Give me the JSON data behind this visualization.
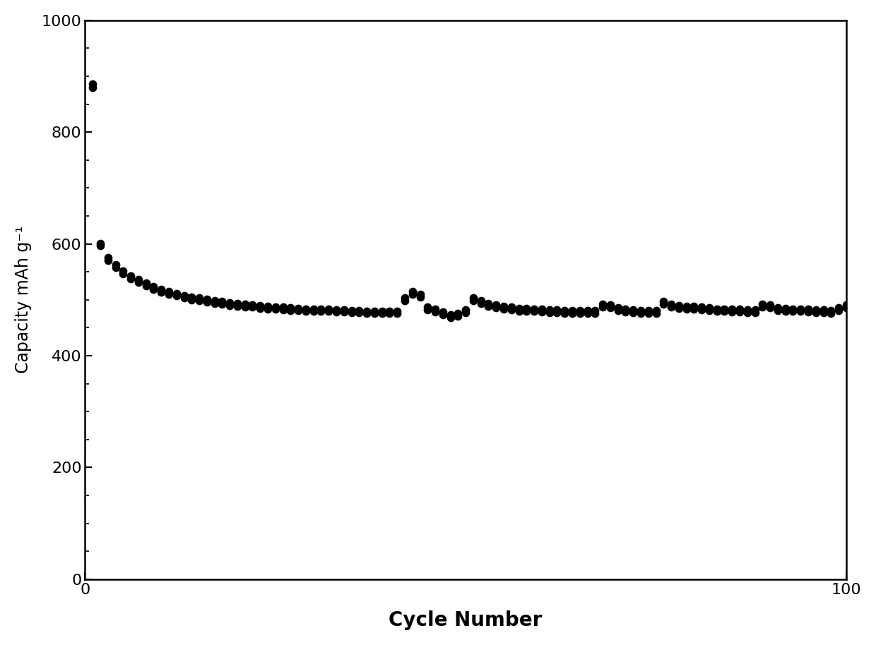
{
  "title": "",
  "xlabel": "Cycle Number",
  "ylabel": "Capacity mAh g⁻¹",
  "xlim": [
    0,
    100
  ],
  "ylim": [
    0,
    1000
  ],
  "yticks": [
    0,
    200,
    400,
    600,
    800,
    1000
  ],
  "xticks": [
    0,
    100
  ],
  "marker_color": "#000000",
  "marker_size": 55,
  "background_color": "#ffffff",
  "xlabel_fontsize": 20,
  "ylabel_fontsize": 17,
  "tick_fontsize": 16,
  "cycles": [
    1,
    2,
    3,
    4,
    5,
    6,
    7,
    8,
    9,
    10,
    11,
    12,
    13,
    14,
    15,
    16,
    17,
    18,
    19,
    20,
    21,
    22,
    23,
    24,
    25,
    26,
    27,
    28,
    29,
    30,
    31,
    32,
    33,
    34,
    35,
    36,
    37,
    38,
    39,
    40,
    41,
    42,
    43,
    44,
    45,
    46,
    47,
    48,
    49,
    50,
    51,
    52,
    53,
    54,
    55,
    56,
    57,
    58,
    59,
    60,
    61,
    62,
    63,
    64,
    65,
    66,
    67,
    68,
    69,
    70,
    71,
    72,
    73,
    74,
    75,
    76,
    77,
    78,
    79,
    80,
    81,
    82,
    83,
    84,
    85,
    86,
    87,
    88,
    89,
    90,
    91,
    92,
    93,
    94,
    95,
    96,
    97,
    98,
    99,
    100
  ],
  "charge": [
    886,
    601,
    575,
    563,
    551,
    543,
    537,
    530,
    524,
    519,
    515,
    511,
    508,
    505,
    503,
    501,
    499,
    497,
    495,
    494,
    492,
    491,
    490,
    488,
    487,
    487,
    486,
    485,
    484,
    484,
    483,
    483,
    482,
    482,
    481,
    481,
    480,
    480,
    480,
    480,
    480,
    504,
    515,
    510,
    487,
    483,
    478,
    473,
    476,
    482,
    503,
    498,
    493,
    491,
    488,
    487,
    485,
    485,
    484,
    483,
    482,
    482,
    481,
    481,
    481,
    481,
    481,
    492,
    491,
    486,
    483,
    482,
    481,
    481,
    481,
    497,
    492,
    490,
    489,
    488,
    487,
    486,
    484,
    484,
    483,
    483,
    482,
    482,
    492,
    491,
    486,
    485,
    484,
    484,
    483,
    482,
    482,
    481,
    486,
    491
  ],
  "discharge": [
    880,
    597,
    570,
    558,
    546,
    538,
    532,
    525,
    519,
    514,
    510,
    507,
    503,
    500,
    498,
    496,
    494,
    492,
    490,
    489,
    487,
    487,
    485,
    484,
    483,
    482,
    481,
    481,
    480,
    479,
    479,
    479,
    478,
    478,
    477,
    477,
    476,
    476,
    476,
    476,
    476,
    499,
    510,
    505,
    482,
    478,
    473,
    468,
    471,
    477,
    498,
    493,
    488,
    486,
    483,
    482,
    480,
    480,
    479,
    478,
    477,
    477,
    476,
    476,
    476,
    476,
    476,
    487,
    486,
    481,
    478,
    477,
    476,
    476,
    476,
    492,
    487,
    485,
    484,
    483,
    482,
    481,
    479,
    479,
    478,
    478,
    477,
    477,
    487,
    486,
    481,
    480,
    479,
    479,
    478,
    477,
    477,
    476,
    481,
    486
  ]
}
